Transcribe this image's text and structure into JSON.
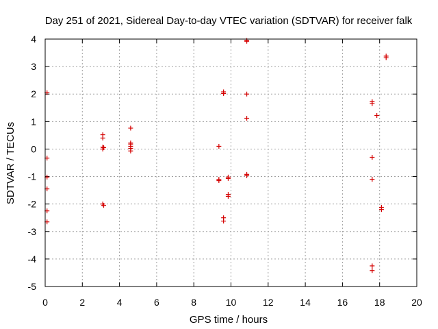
{
  "chart_data": {
    "type": "scatter",
    "title": "Day 251 of 2021, Sidereal Day-to-day VTEC variation (SDTVAR) for receiver falk",
    "xlabel": "GPS time / hours",
    "ylabel": "SDTVAR / TECUs",
    "xlim": [
      0,
      20
    ],
    "ylim": [
      -5,
      4
    ],
    "xticks": [
      0,
      2,
      4,
      6,
      8,
      10,
      12,
      14,
      16,
      18,
      20
    ],
    "yticks": [
      -5,
      -4,
      -3,
      -2,
      -1,
      0,
      1,
      2,
      3,
      4
    ],
    "grid": true,
    "marker": "plus",
    "color": "#d40000",
    "series": [
      {
        "name": "SDTVAR",
        "points": [
          [
            0.1,
            2.05
          ],
          [
            0.1,
            -0.33
          ],
          [
            0.1,
            -1.02
          ],
          [
            0.1,
            -1.45
          ],
          [
            0.1,
            -2.25
          ],
          [
            0.1,
            -2.65
          ],
          [
            3.1,
            0.52
          ],
          [
            3.1,
            0.4
          ],
          [
            3.1,
            0.07
          ],
          [
            3.1,
            0.0
          ],
          [
            3.15,
            0.05
          ],
          [
            3.1,
            -2.0
          ],
          [
            3.15,
            -2.05
          ],
          [
            4.6,
            0.76
          ],
          [
            4.6,
            0.22
          ],
          [
            4.6,
            0.18
          ],
          [
            4.6,
            0.1
          ],
          [
            4.6,
            0.02
          ],
          [
            4.6,
            -0.07
          ],
          [
            9.35,
            0.1
          ],
          [
            9.35,
            -1.1
          ],
          [
            9.35,
            -1.15
          ],
          [
            9.6,
            2.08
          ],
          [
            9.6,
            2.02
          ],
          [
            9.6,
            -2.5
          ],
          [
            9.6,
            -2.62
          ],
          [
            9.85,
            -1.02
          ],
          [
            9.85,
            -1.07
          ],
          [
            9.85,
            -1.65
          ],
          [
            9.85,
            -1.72
          ],
          [
            10.85,
            3.95
          ],
          [
            10.85,
            3.92
          ],
          [
            10.85,
            2.0
          ],
          [
            10.85,
            1.12
          ],
          [
            10.85,
            -0.92
          ],
          [
            10.85,
            -0.97
          ],
          [
            17.6,
            1.72
          ],
          [
            17.6,
            1.65
          ],
          [
            17.6,
            -0.3
          ],
          [
            17.6,
            -1.1
          ],
          [
            17.6,
            -4.25
          ],
          [
            17.6,
            -4.42
          ],
          [
            17.85,
            1.22
          ],
          [
            18.1,
            -2.12
          ],
          [
            18.1,
            -2.2
          ],
          [
            18.35,
            3.38
          ],
          [
            18.35,
            3.32
          ]
        ]
      }
    ]
  }
}
